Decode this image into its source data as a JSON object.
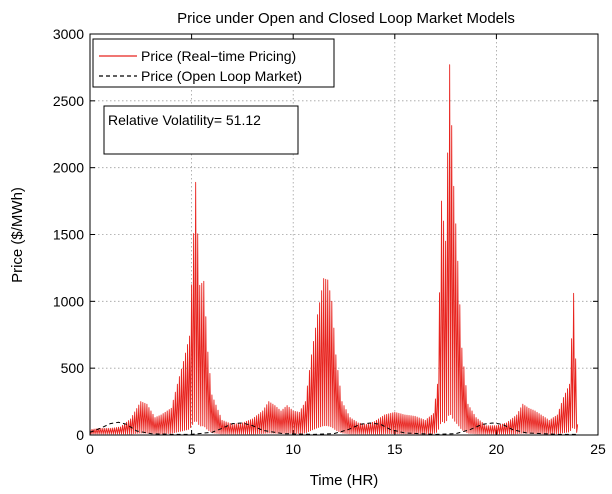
{
  "chart_data": {
    "type": "line",
    "title": "Price under Open and Closed Loop Market Models",
    "xlabel": "Time (HR)",
    "ylabel": "Price ($/MWh)",
    "xlim": [
      0,
      25
    ],
    "ylim": [
      0,
      3000
    ],
    "xticks": [
      0,
      5,
      10,
      15,
      20,
      25
    ],
    "yticks": [
      0,
      500,
      1000,
      1500,
      2000,
      2500,
      3000
    ],
    "grid": true,
    "legend_position": "top-left",
    "annotation": "Relative Volatility= 51.12",
    "series": [
      {
        "name": "Price (Real−time Pricing)",
        "color": "#e8231e",
        "style": "solid",
        "peaks": [
          [
            0.0,
            40
          ],
          [
            0.5,
            50
          ],
          [
            1.0,
            50
          ],
          [
            1.5,
            60
          ],
          [
            2.0,
            120
          ],
          [
            2.5,
            250
          ],
          [
            2.8,
            230
          ],
          [
            3.2,
            130
          ],
          [
            3.5,
            150
          ],
          [
            4.0,
            200
          ],
          [
            4.3,
            380
          ],
          [
            4.6,
            550
          ],
          [
            4.9,
            740
          ],
          [
            5.2,
            1890
          ],
          [
            5.4,
            1120
          ],
          [
            5.6,
            1150
          ],
          [
            5.8,
            620
          ],
          [
            6.0,
            300
          ],
          [
            6.5,
            110
          ],
          [
            7.0,
            80
          ],
          [
            7.5,
            90
          ],
          [
            8.0,
            120
          ],
          [
            8.5,
            180
          ],
          [
            8.8,
            250
          ],
          [
            9.1,
            220
          ],
          [
            9.4,
            180
          ],
          [
            9.7,
            220
          ],
          [
            10.0,
            180
          ],
          [
            10.3,
            170
          ],
          [
            10.6,
            250
          ],
          [
            10.9,
            600
          ],
          [
            11.2,
            900
          ],
          [
            11.5,
            1170
          ],
          [
            11.7,
            1160
          ],
          [
            11.9,
            1000
          ],
          [
            12.1,
            600
          ],
          [
            12.4,
            250
          ],
          [
            12.8,
            130
          ],
          [
            13.2,
            90
          ],
          [
            13.6,
            80
          ],
          [
            14.0,
            100
          ],
          [
            14.5,
            150
          ],
          [
            15.0,
            170
          ],
          [
            15.5,
            150
          ],
          [
            16.0,
            140
          ],
          [
            16.5,
            110
          ],
          [
            16.9,
            160
          ],
          [
            17.1,
            380
          ],
          [
            17.3,
            1750
          ],
          [
            17.5,
            1450
          ],
          [
            17.7,
            2770
          ],
          [
            17.9,
            1860
          ],
          [
            18.1,
            1300
          ],
          [
            18.3,
            650
          ],
          [
            18.6,
            230
          ],
          [
            19.0,
            130
          ],
          [
            19.5,
            70
          ],
          [
            20.0,
            70
          ],
          [
            20.5,
            90
          ],
          [
            21.0,
            150
          ],
          [
            21.3,
            230
          ],
          [
            21.6,
            200
          ],
          [
            21.9,
            180
          ],
          [
            22.2,
            150
          ],
          [
            22.6,
            110
          ],
          [
            23.0,
            150
          ],
          [
            23.3,
            280
          ],
          [
            23.6,
            380
          ],
          [
            23.8,
            1060
          ],
          [
            24.0,
            80
          ]
        ]
      },
      {
        "name": "Price (Open Loop Market)",
        "color": "#000000",
        "style": "dashed",
        "points": [
          [
            0.0,
            20
          ],
          [
            0.5,
            50
          ],
          [
            1.0,
            85
          ],
          [
            1.4,
            95
          ],
          [
            1.8,
            80
          ],
          [
            2.3,
            30
          ],
          [
            3.0,
            10
          ],
          [
            4.0,
            5
          ],
          [
            5.0,
            5
          ],
          [
            6.0,
            20
          ],
          [
            6.5,
            50
          ],
          [
            7.0,
            85
          ],
          [
            7.5,
            90
          ],
          [
            8.0,
            70
          ],
          [
            8.5,
            35
          ],
          [
            9.5,
            10
          ],
          [
            11.0,
            5
          ],
          [
            12.0,
            10
          ],
          [
            12.7,
            40
          ],
          [
            13.3,
            80
          ],
          [
            13.8,
            90
          ],
          [
            14.3,
            80
          ],
          [
            14.8,
            40
          ],
          [
            15.5,
            15
          ],
          [
            17.0,
            5
          ],
          [
            18.0,
            10
          ],
          [
            18.7,
            40
          ],
          [
            19.3,
            80
          ],
          [
            19.8,
            90
          ],
          [
            20.3,
            80
          ],
          [
            20.8,
            40
          ],
          [
            21.5,
            15
          ],
          [
            23.0,
            5
          ],
          [
            24.0,
            5
          ]
        ]
      }
    ]
  }
}
